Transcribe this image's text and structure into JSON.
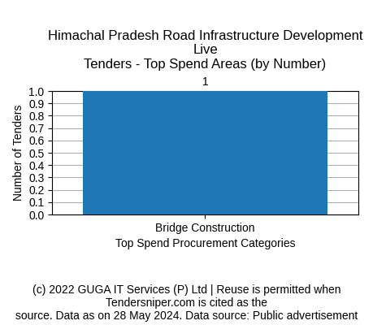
{
  "chart_data": {
    "type": "bar",
    "title": "Himachal Pradesh Road Infrastructure Development Live\nTenders - Top Spend Areas (by Number)",
    "categories": [
      "Bridge Construction"
    ],
    "values": [
      1
    ],
    "xlabel": "Top Spend Procurement Categories",
    "ylabel": "Number of Tenders",
    "ylim": [
      0,
      1.0
    ],
    "yticks": [
      {
        "value": 0.0,
        "label": "0.0"
      },
      0.1,
      0.2,
      0.3,
      0.4,
      0.5,
      0.6,
      0.7,
      0.8,
      0.9,
      {
        "value": 1.0,
        "label": "1.0"
      }
    ],
    "grid": true,
    "data_labels": true,
    "annotations": [
      "(c) 2022 GUGA IT Services (P) Ltd | Reuse is permitted when Tendersniper.com is cited as the\nsource. Data as on 28 May 2024. Data source: Public advertisement"
    ]
  }
}
